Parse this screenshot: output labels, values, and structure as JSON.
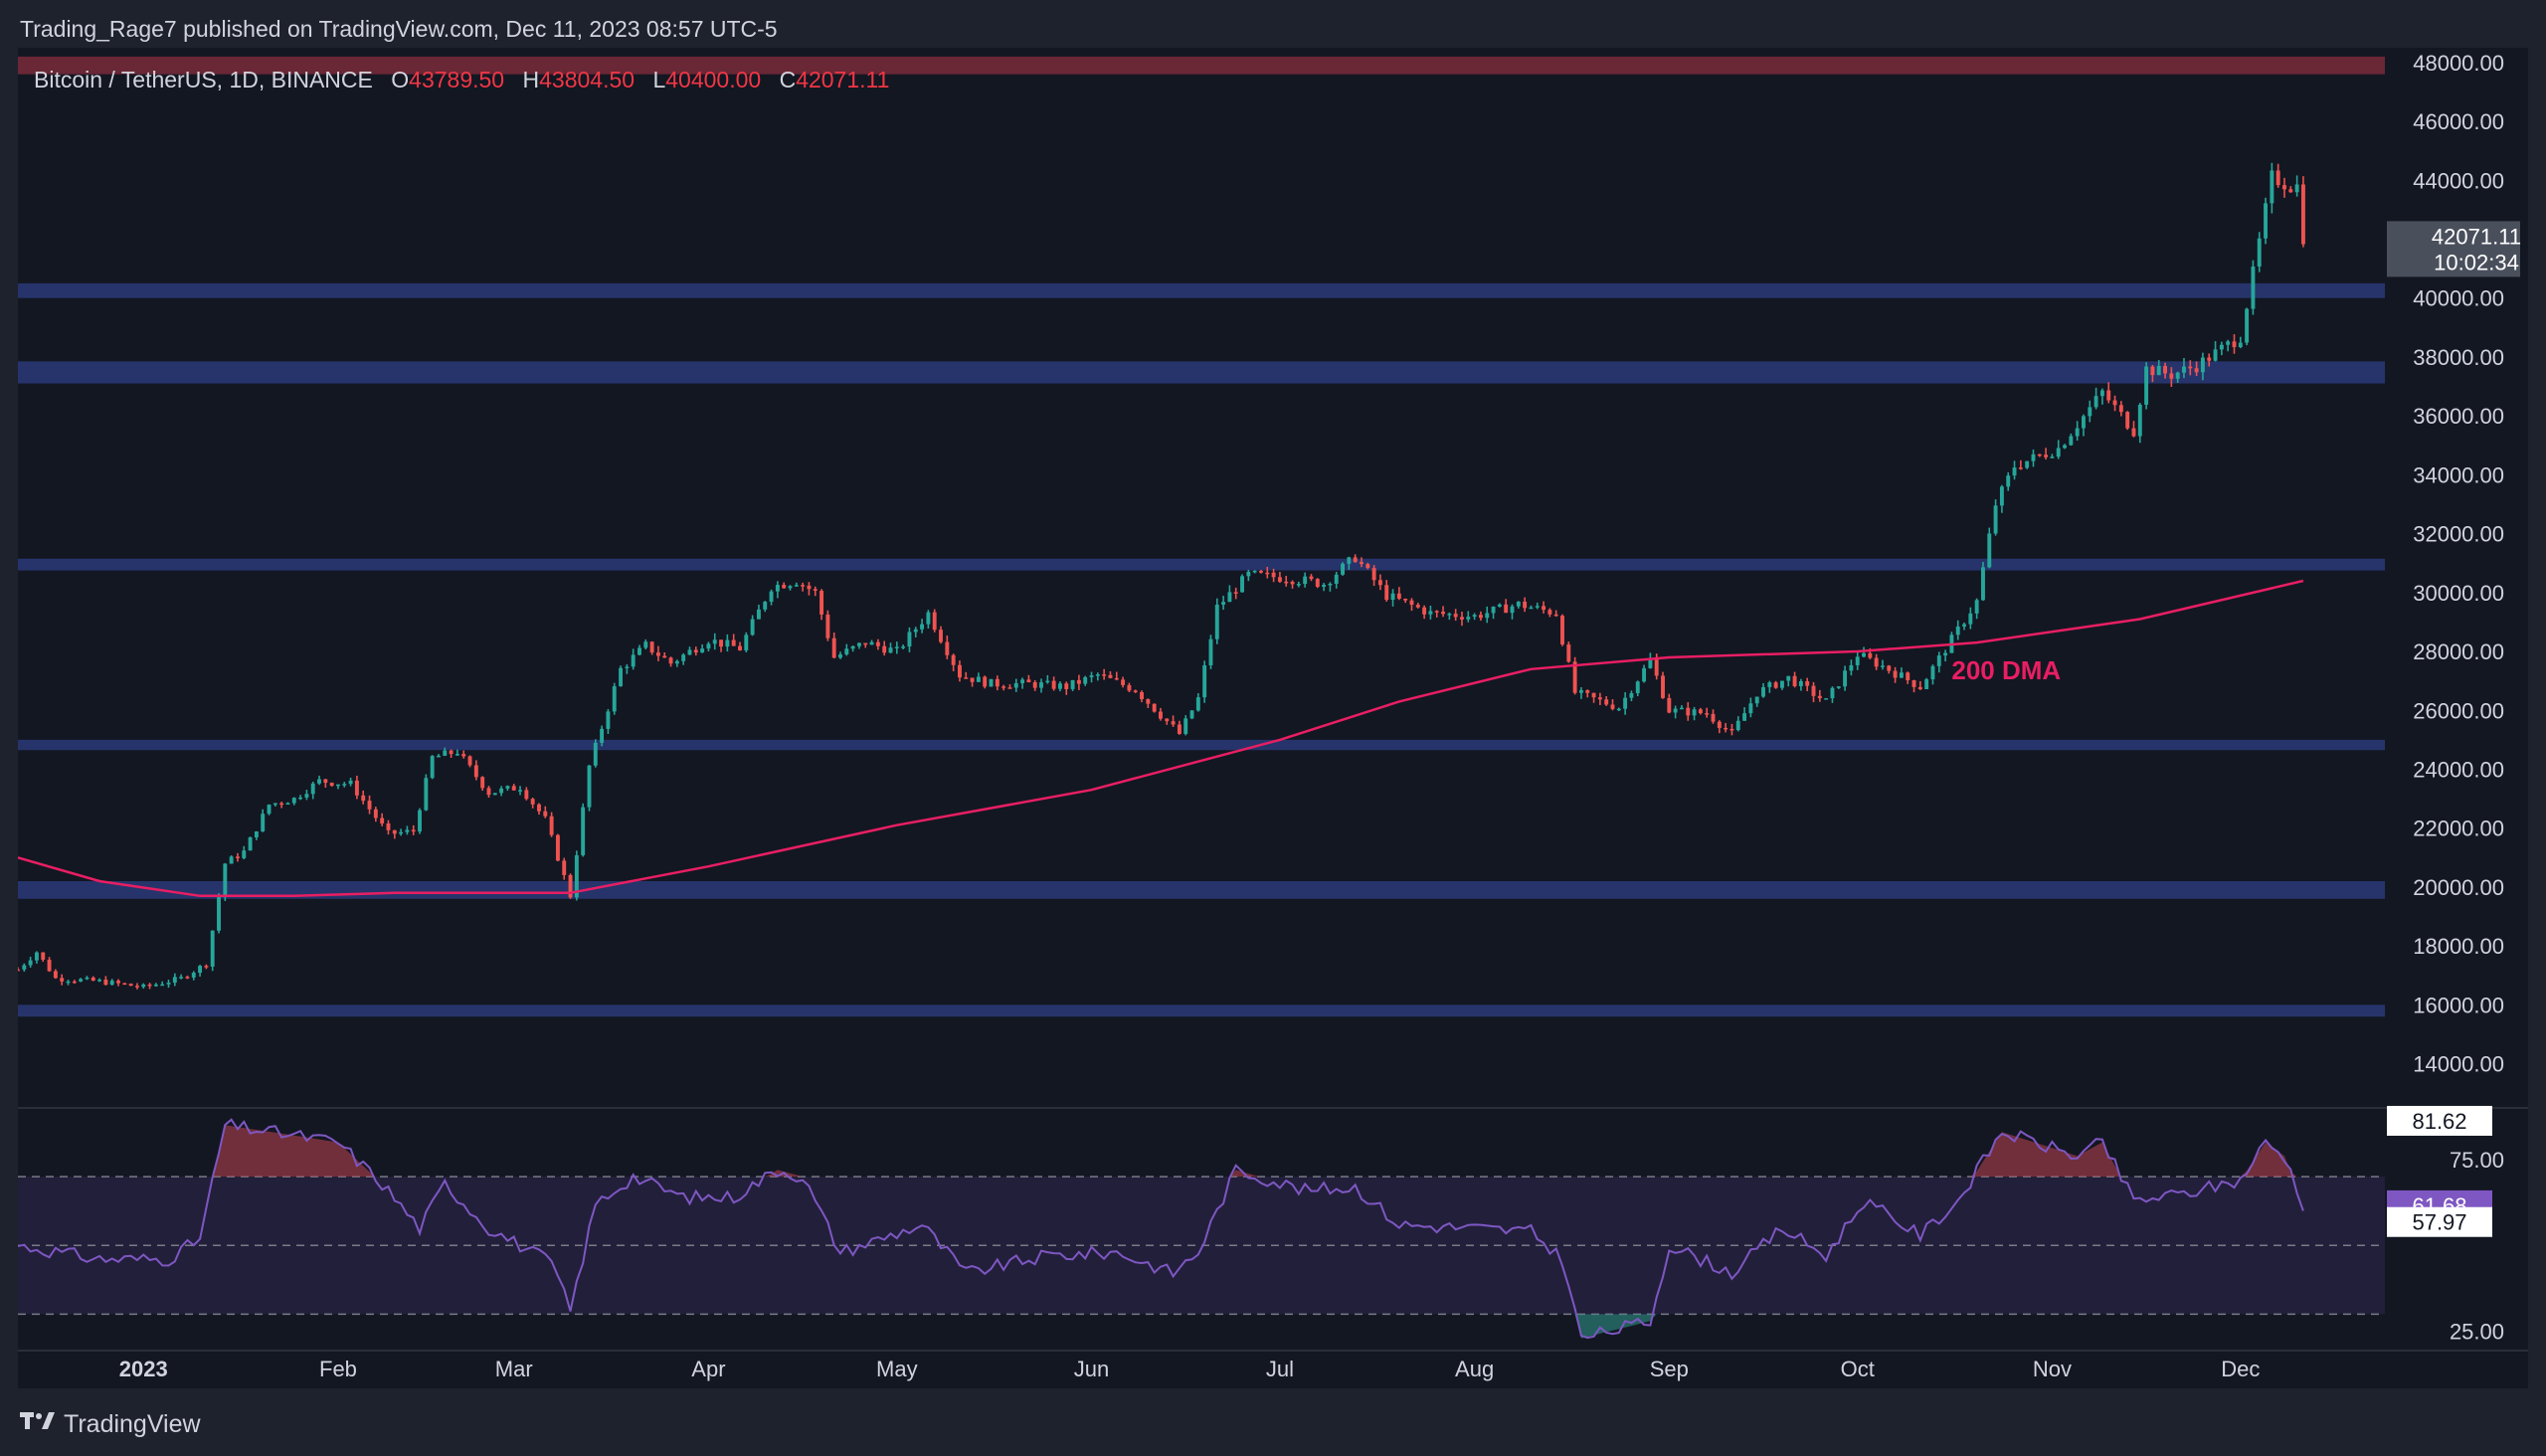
{
  "header": {
    "published_line": "Trading_Rage7 published on TradingView.com, Dec 11, 2023 08:57 UTC-5"
  },
  "legend": {
    "symbol": "Bitcoin / TetherUS, 1D, BINANCE",
    "o_label": "O",
    "o_value": "43789.50",
    "h_label": "H",
    "h_value": "43804.50",
    "l_label": "L",
    "l_value": "40400.00",
    "c_label": "C",
    "c_value": "42071.11"
  },
  "footer": {
    "brand": "TradingView",
    "logo": "tradingview-logo"
  },
  "colors": {
    "background": "#131722",
    "up": "#26a69a",
    "down": "#ef5350",
    "zone": "#2a3a78",
    "resistance_zone": "#7a2a3a",
    "dma": "#e91e63",
    "rsi_line": "#7e57c2",
    "rsi_band": "#2a2346"
  },
  "chart_data": [
    {
      "type": "candlestick",
      "x_axis": {
        "tick_labels": [
          "2023",
          "Feb",
          "Mar",
          "Apr",
          "May",
          "Jun",
          "Jul",
          "Aug",
          "Sep",
          "Oct",
          "Nov",
          "Dec"
        ],
        "tick_dates": [
          "2023-01-01",
          "2023-02-01",
          "2023-03-01",
          "2023-04-01",
          "2023-05-01",
          "2023-06-01",
          "2023-07-01",
          "2023-08-01",
          "2023-09-01",
          "2023-10-01",
          "2023-11-01",
          "2023-12-01"
        ],
        "range": [
          "2022-12-12",
          "2023-12-24"
        ]
      },
      "y_axis": {
        "range": [
          12500,
          48500
        ],
        "tick_labels": [
          "48000.00",
          "46000.00",
          "44000.00",
          "42000.00",
          "40000.00",
          "38000.00",
          "36000.00",
          "34000.00",
          "32000.00",
          "30000.00",
          "28000.00",
          "26000.00",
          "24000.00",
          "22000.00",
          "20000.00",
          "18000.00",
          "16000.00",
          "14000.00"
        ],
        "tick_values": [
          48000,
          46000,
          44000,
          42000,
          40000,
          38000,
          36000,
          34000,
          32000,
          30000,
          28000,
          26000,
          24000,
          22000,
          20000,
          18000,
          16000,
          14000
        ]
      },
      "last_price": {
        "value": 42071.11,
        "label": "42071.11",
        "countdown": "10:02:34"
      },
      "annotation": {
        "text": "200 DMA",
        "date": "2023-10-16",
        "value": 27050
      },
      "zones": [
        {
          "low": 47600,
          "high": 48200,
          "kind": "resistance"
        },
        {
          "low": 40000,
          "high": 40500,
          "kind": "support"
        },
        {
          "low": 37100,
          "high": 37850,
          "kind": "support"
        },
        {
          "low": 30750,
          "high": 31150,
          "kind": "support"
        },
        {
          "low": 24650,
          "high": 25000,
          "kind": "support"
        },
        {
          "low": 19600,
          "high": 20200,
          "kind": "support"
        },
        {
          "low": 15600,
          "high": 16000,
          "kind": "support"
        }
      ],
      "price_path": [
        [
          "2022-12-12",
          17200
        ],
        [
          "2022-12-15",
          17800
        ],
        [
          "2022-12-18",
          16900
        ],
        [
          "2022-12-25",
          16800
        ],
        [
          "2023-01-01",
          16600
        ],
        [
          "2023-01-07",
          16900
        ],
        [
          "2023-01-11",
          17400
        ],
        [
          "2023-01-14",
          20800
        ],
        [
          "2023-01-17",
          21200
        ],
        [
          "2023-01-21",
          22800
        ],
        [
          "2023-01-25",
          23000
        ],
        [
          "2023-01-29",
          23600
        ],
        [
          "2023-02-03",
          23500
        ],
        [
          "2023-02-09",
          21800
        ],
        [
          "2023-02-13",
          21900
        ],
        [
          "2023-02-16",
          24400
        ],
        [
          "2023-02-20",
          24600
        ],
        [
          "2023-02-25",
          23200
        ],
        [
          "2023-03-02",
          23400
        ],
        [
          "2023-03-06",
          22300
        ],
        [
          "2023-03-10",
          19700
        ],
        [
          "2023-03-13",
          24100
        ],
        [
          "2023-03-18",
          27400
        ],
        [
          "2023-03-22",
          28200
        ],
        [
          "2023-03-26",
          27600
        ],
        [
          "2023-04-01",
          28400
        ],
        [
          "2023-04-06",
          28100
        ],
        [
          "2023-04-11",
          30200
        ],
        [
          "2023-04-15",
          30400
        ],
        [
          "2023-04-18",
          30000
        ],
        [
          "2023-04-21",
          27800
        ],
        [
          "2023-04-26",
          28300
        ],
        [
          "2023-05-01",
          28000
        ],
        [
          "2023-05-06",
          29300
        ],
        [
          "2023-05-11",
          27200
        ],
        [
          "2023-05-16",
          26900
        ],
        [
          "2023-05-22",
          26900
        ],
        [
          "2023-05-28",
          26800
        ],
        [
          "2023-06-02",
          27200
        ],
        [
          "2023-06-08",
          26700
        ],
        [
          "2023-06-15",
          25200
        ],
        [
          "2023-06-18",
          26400
        ],
        [
          "2023-06-21",
          29500
        ],
        [
          "2023-06-26",
          30600
        ],
        [
          "2023-07-02",
          30500
        ],
        [
          "2023-07-08",
          30300
        ],
        [
          "2023-07-13",
          31200
        ],
        [
          "2023-07-18",
          29900
        ],
        [
          "2023-07-25",
          29300
        ],
        [
          "2023-08-01",
          29200
        ],
        [
          "2023-08-08",
          29600
        ],
        [
          "2023-08-14",
          29300
        ],
        [
          "2023-08-17",
          26600
        ],
        [
          "2023-08-24",
          26100
        ],
        [
          "2023-08-29",
          27700
        ],
        [
          "2023-09-01",
          26000
        ],
        [
          "2023-09-07",
          25900
        ],
        [
          "2023-09-11",
          25200
        ],
        [
          "2023-09-15",
          26600
        ],
        [
          "2023-09-20",
          27100
        ],
        [
          "2023-09-26",
          26300
        ],
        [
          "2023-10-01",
          27900
        ],
        [
          "2023-10-05",
          27500
        ],
        [
          "2023-10-11",
          26800
        ],
        [
          "2023-10-16",
          28400
        ],
        [
          "2023-10-20",
          29700
        ],
        [
          "2023-10-23",
          33000
        ],
        [
          "2023-10-26",
          34300
        ],
        [
          "2023-11-02",
          34900
        ],
        [
          "2023-11-09",
          36800
        ],
        [
          "2023-11-14",
          35500
        ],
        [
          "2023-11-16",
          37600
        ],
        [
          "2023-11-20",
          37400
        ],
        [
          "2023-11-24",
          37700
        ],
        [
          "2023-12-01",
          38700
        ],
        [
          "2023-12-04",
          41900
        ],
        [
          "2023-12-06",
          44100
        ],
        [
          "2023-12-09",
          43800
        ],
        [
          "2023-12-10",
          43800
        ],
        [
          "2023-12-11",
          42071
        ]
      ],
      "dma_path": [
        [
          "2022-12-12",
          21000
        ],
        [
          "2022-12-25",
          20200
        ],
        [
          "2023-01-10",
          19700
        ],
        [
          "2023-01-25",
          19700
        ],
        [
          "2023-02-10",
          19800
        ],
        [
          "2023-03-10",
          19800
        ],
        [
          "2023-04-01",
          20700
        ],
        [
          "2023-05-01",
          22100
        ],
        [
          "2023-06-01",
          23300
        ],
        [
          "2023-07-01",
          25000
        ],
        [
          "2023-07-20",
          26300
        ],
        [
          "2023-08-10",
          27400
        ],
        [
          "2023-09-01",
          27800
        ],
        [
          "2023-10-01",
          28000
        ],
        [
          "2023-10-20",
          28300
        ],
        [
          "2023-11-15",
          29100
        ],
        [
          "2023-12-11",
          30400
        ]
      ]
    },
    {
      "type": "line",
      "name": "RSI",
      "y_axis": {
        "range": [
          20,
          90
        ],
        "tick_labels": [
          "75.00",
          "25.00"
        ],
        "tick_values": [
          75,
          25
        ],
        "marker_labels": [
          "81.62",
          "61.68",
          "57.97"
        ],
        "marker_values": [
          81.62,
          61.68,
          57.97
        ]
      },
      "bands": [
        70,
        50,
        30
      ],
      "rsi_path": [
        [
          "2022-12-12",
          50
        ],
        [
          "2022-12-25",
          46
        ],
        [
          "2023-01-05",
          46
        ],
        [
          "2023-01-10",
          52
        ],
        [
          "2023-01-14",
          85
        ],
        [
          "2023-01-25",
          82
        ],
        [
          "2023-02-01",
          80
        ],
        [
          "2023-02-08",
          68
        ],
        [
          "2023-02-14",
          55
        ],
        [
          "2023-02-18",
          68
        ],
        [
          "2023-02-25",
          55
        ],
        [
          "2023-03-07",
          45
        ],
        [
          "2023-03-10",
          31
        ],
        [
          "2023-03-14",
          62
        ],
        [
          "2023-03-20",
          70
        ],
        [
          "2023-03-28",
          64
        ],
        [
          "2023-04-05",
          64
        ],
        [
          "2023-04-12",
          72
        ],
        [
          "2023-04-16",
          70
        ],
        [
          "2023-04-22",
          48
        ],
        [
          "2023-05-05",
          56
        ],
        [
          "2023-05-12",
          42
        ],
        [
          "2023-05-25",
          47
        ],
        [
          "2023-06-05",
          48
        ],
        [
          "2023-06-14",
          42
        ],
        [
          "2023-06-18",
          48
        ],
        [
          "2023-06-24",
          72
        ],
        [
          "2023-07-05",
          66
        ],
        [
          "2023-07-13",
          67
        ],
        [
          "2023-07-20",
          56
        ],
        [
          "2023-08-01",
          55
        ],
        [
          "2023-08-10",
          54
        ],
        [
          "2023-08-15",
          46
        ],
        [
          "2023-08-18",
          23
        ],
        [
          "2023-08-29",
          28
        ],
        [
          "2023-09-01",
          50
        ],
        [
          "2023-09-11",
          42
        ],
        [
          "2023-09-19",
          55
        ],
        [
          "2023-09-26",
          47
        ],
        [
          "2023-10-02",
          63
        ],
        [
          "2023-10-11",
          53
        ],
        [
          "2023-10-17",
          63
        ],
        [
          "2023-10-24",
          83
        ],
        [
          "2023-11-05",
          76
        ],
        [
          "2023-11-09",
          80
        ],
        [
          "2023-11-14",
          63
        ],
        [
          "2023-11-22",
          65
        ],
        [
          "2023-12-01",
          69
        ],
        [
          "2023-12-05",
          80
        ],
        [
          "2023-12-08",
          76
        ],
        [
          "2023-12-11",
          62
        ]
      ]
    }
  ]
}
